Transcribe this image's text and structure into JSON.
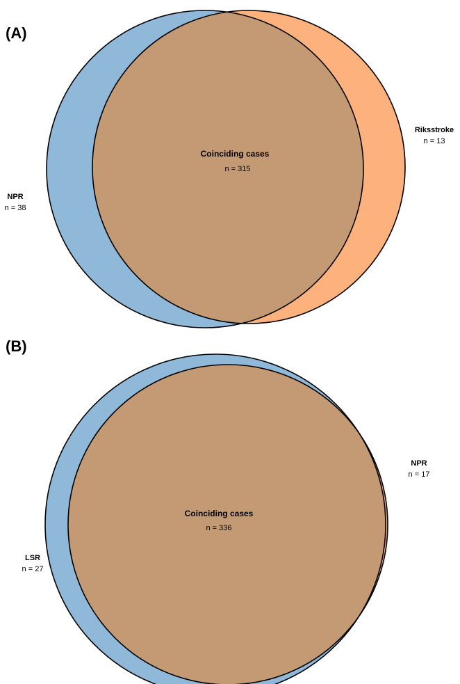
{
  "colors": {
    "left_set": "#8fb8d9",
    "right_set": "#fdb27d",
    "overlap": "#c49a74",
    "outline": "#000000"
  },
  "panels": [
    {
      "label": "(A)",
      "left_set": {
        "name": "NPR",
        "count": "n = 38",
        "value": 38
      },
      "right_set": {
        "name": "Riksstroke",
        "count": "n = 13",
        "value": 13
      },
      "overlap": {
        "name": "Coinciding cases",
        "count": "n = 315",
        "value": 315
      }
    },
    {
      "label": "(B)",
      "left_set": {
        "name": "LSR",
        "count": "n = 27",
        "value": 27
      },
      "right_set": {
        "name": "NPR",
        "count": "n = 17",
        "value": 17
      },
      "overlap": {
        "name": "Coinciding cases",
        "count": "n = 336",
        "value": 336
      }
    }
  ]
}
